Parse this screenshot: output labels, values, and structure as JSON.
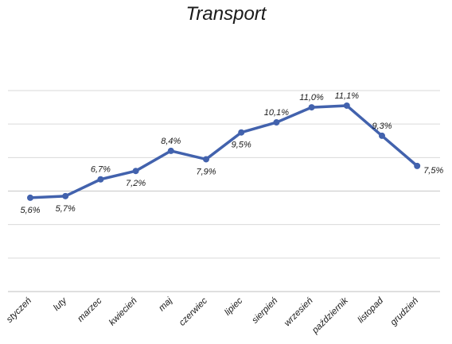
{
  "chart_data": {
    "type": "line",
    "title": "Transport",
    "categories": [
      "styczeń",
      "luty",
      "marzec",
      "kwiecień",
      "maj",
      "czerwiec",
      "lipiec",
      "sierpień",
      "wrzesień",
      "październik",
      "listopad",
      "grudzień"
    ],
    "series": [
      {
        "values": [
          5.6,
          5.7,
          6.7,
          7.2,
          8.4,
          7.9,
          9.5,
          10.1,
          11.0,
          11.1,
          9.3,
          7.5
        ],
        "labels": [
          "5,6%",
          "5,7%",
          "6,7%",
          "7,2%",
          "8,4%",
          "7,9%",
          "9,5%",
          "10,1%",
          "11,0%",
          "11,1%",
          "9,3%",
          "7,5%"
        ],
        "color": "#4262ad"
      }
    ],
    "ylim": [
      0,
      12
    ],
    "grid": true,
    "label_position": [
      "below",
      "below",
      "above",
      "below",
      "above",
      "below",
      "below",
      "above",
      "above",
      "above",
      "above",
      "right"
    ]
  }
}
